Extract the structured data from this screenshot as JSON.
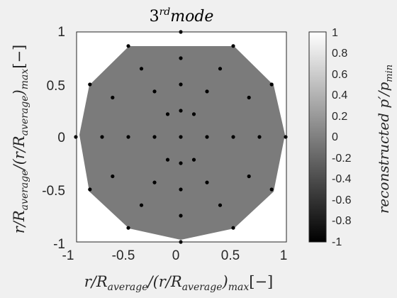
{
  "chart_data": {
    "type": "scatter",
    "title": {
      "base": "3",
      "sup": "rd",
      "tail": "mode"
    },
    "xlabel": "r/R_average/(r/R_average)_max[−]",
    "ylabel": "r/R_average/(r/R_average)_max[−]",
    "xlim": [
      -1,
      1
    ],
    "ylim": [
      -1,
      1
    ],
    "x_ticks": [
      "-1",
      "-0.5",
      "0",
      "0.5",
      "1"
    ],
    "y_ticks": [
      "1",
      "0.5",
      "0",
      "-0.5",
      "-1"
    ],
    "colorbar": {
      "label": "reconstructed p′/p_min",
      "range": [
        -1,
        1
      ],
      "ticks": [
        "1",
        "0.8",
        "0.6",
        "0.4",
        "0.2",
        "0",
        "-0.2",
        "-0.4",
        "-0.6",
        "-0.8",
        "-1"
      ],
      "colormap": "gray"
    },
    "field_value_approx": 0.1,
    "points": [
      {
        "x": 0,
        "y": 1
      },
      {
        "x": 0,
        "y": 0.75
      },
      {
        "x": 0,
        "y": 0.5
      },
      {
        "x": 0,
        "y": 0.25
      },
      {
        "x": 0,
        "y": 0
      },
      {
        "x": 0,
        "y": -0.25
      },
      {
        "x": 0,
        "y": -0.5
      },
      {
        "x": 0,
        "y": -0.75
      },
      {
        "x": 0,
        "y": -1
      },
      {
        "x": -0.5,
        "y": 0.866
      },
      {
        "x": 0.5,
        "y": 0.866
      },
      {
        "x": -0.866,
        "y": 0.5
      },
      {
        "x": 0.866,
        "y": 0.5
      },
      {
        "x": -1,
        "y": 0
      },
      {
        "x": 1,
        "y": 0
      },
      {
        "x": -0.866,
        "y": -0.5
      },
      {
        "x": 0.866,
        "y": -0.5
      },
      {
        "x": -0.5,
        "y": -0.866
      },
      {
        "x": 0.5,
        "y": -0.866
      },
      {
        "x": -0.375,
        "y": 0.65
      },
      {
        "x": 0.375,
        "y": 0.65
      },
      {
        "x": -0.65,
        "y": 0.375
      },
      {
        "x": 0.65,
        "y": 0.375
      },
      {
        "x": -0.75,
        "y": 0
      },
      {
        "x": 0.75,
        "y": 0
      },
      {
        "x": -0.65,
        "y": -0.375
      },
      {
        "x": 0.65,
        "y": -0.375
      },
      {
        "x": -0.375,
        "y": -0.65
      },
      {
        "x": 0.375,
        "y": -0.65
      },
      {
        "x": -0.25,
        "y": 0.433
      },
      {
        "x": 0.25,
        "y": 0.433
      },
      {
        "x": -0.5,
        "y": 0
      },
      {
        "x": 0.5,
        "y": 0
      },
      {
        "x": -0.25,
        "y": -0.433
      },
      {
        "x": 0.25,
        "y": -0.433
      },
      {
        "x": -0.125,
        "y": 0.217
      },
      {
        "x": 0.125,
        "y": 0.217
      },
      {
        "x": -0.25,
        "y": 0
      },
      {
        "x": 0.25,
        "y": 0
      },
      {
        "x": -0.125,
        "y": -0.217
      },
      {
        "x": 0.125,
        "y": -0.217
      }
    ]
  }
}
